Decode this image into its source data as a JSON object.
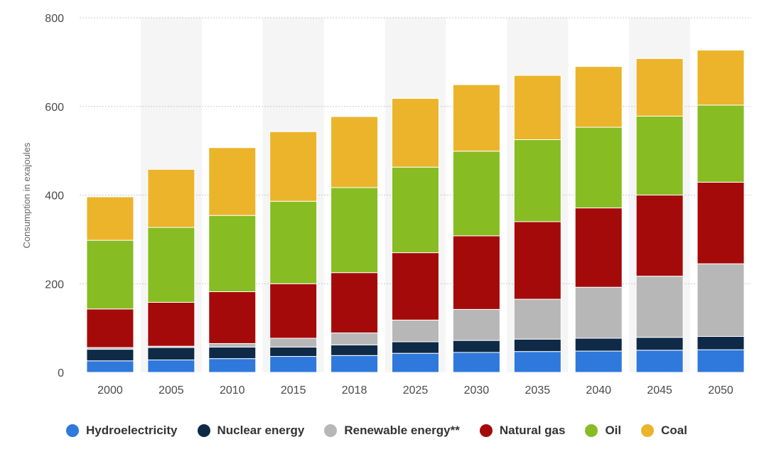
{
  "chart_data": {
    "type": "bar",
    "stacked": true,
    "ylabel": "Consumption in exajoules",
    "ylim": [
      0,
      800
    ],
    "yticks": [
      "0",
      "200",
      "400",
      "600",
      "800"
    ],
    "grid": true,
    "legend_position": "bottom",
    "categories": [
      "2000",
      "2005",
      "2010",
      "2015",
      "2018",
      "2025",
      "2030",
      "2035",
      "2040",
      "2045",
      "2050"
    ],
    "series": [
      {
        "name": "Hydroelectricity",
        "color": "#2f78dc",
        "values": [
          26,
          28,
          31,
          36,
          38,
          43,
          45,
          47,
          48,
          50,
          51
        ]
      },
      {
        "name": "Nuclear energy",
        "color": "#0e2a47",
        "values": [
          26,
          28,
          26,
          21,
          24,
          26,
          27,
          28,
          29,
          29,
          30
        ]
      },
      {
        "name": "Renewable energy**",
        "color": "#b7b7b7",
        "values": [
          4,
          3,
          8,
          20,
          27,
          49,
          70,
          90,
          115,
          138,
          164
        ]
      },
      {
        "name": "Natural gas",
        "color": "#a50a0a",
        "values": [
          87,
          99,
          117,
          123,
          136,
          152,
          166,
          175,
          179,
          183,
          184
        ]
      },
      {
        "name": "Oil",
        "color": "#87bc23",
        "values": [
          155,
          169,
          172,
          186,
          192,
          193,
          191,
          185,
          182,
          178,
          174
        ]
      },
      {
        "name": "Coal",
        "color": "#ebb42a",
        "values": [
          98,
          131,
          153,
          157,
          160,
          155,
          150,
          145,
          137,
          130,
          124
        ]
      }
    ]
  }
}
